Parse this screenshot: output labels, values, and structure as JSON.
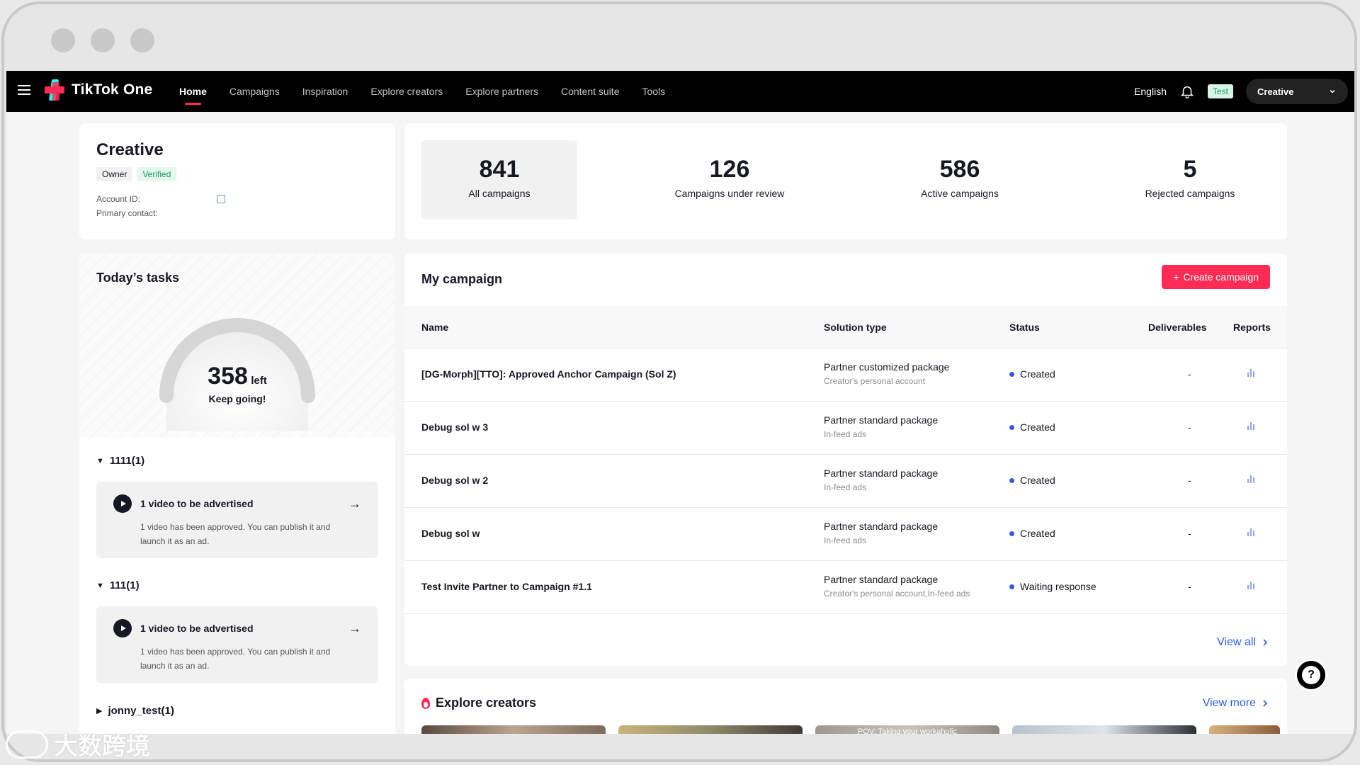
{
  "nav": {
    "brand": "TikTok One",
    "links": [
      "Home",
      "Campaigns",
      "Inspiration",
      "Explore creators",
      "Explore partners",
      "Content suite",
      "Tools"
    ],
    "active_index": 0,
    "language": "English",
    "env_badge": "Test",
    "account": "Creative"
  },
  "profile": {
    "name": "Creative",
    "owner_badge": "Owner",
    "verified_badge": "Verified",
    "account_id_label": "Account ID:",
    "primary_contact_label": "Primary contact:"
  },
  "stats": [
    {
      "value": "841",
      "label": "All campaigns"
    },
    {
      "value": "126",
      "label": "Campaigns under review"
    },
    {
      "value": "586",
      "label": "Active campaigns"
    },
    {
      "value": "5",
      "label": "Rejected campaigns"
    }
  ],
  "tasks": {
    "title": "Today’s tasks",
    "gauge_value": "358",
    "gauge_unit": "left",
    "gauge_sub": "Keep going!",
    "groups": [
      {
        "name": "1111(1)",
        "expanded": true,
        "item_title": "1 video to be advertised",
        "item_desc": "1 video has been approved. You can publish it and launch it as an ad."
      },
      {
        "name": "111(1)",
        "expanded": true,
        "item_title": "1 video to be advertised",
        "item_desc": "1 video has been approved. You can publish it and launch it as an ad."
      },
      {
        "name": "jonny_test(1)",
        "expanded": false
      }
    ]
  },
  "campaign": {
    "title": "My campaign",
    "create_label": "Create campaign",
    "columns": [
      "Name",
      "Solution type",
      "Status",
      "Deliverables",
      "Reports"
    ],
    "rows": [
      {
        "name": "[DG-Morph][TTO]: Approved Anchor Campaign (Sol Z)",
        "solution": "Partner customized package",
        "solution_sub": "Creator's personal account",
        "status": "Created",
        "deliverables": "-"
      },
      {
        "name": "Debug sol w 3",
        "solution": "Partner standard package",
        "solution_sub": "In-feed ads",
        "status": "Created",
        "deliverables": "-"
      },
      {
        "name": "Debug sol w 2",
        "solution": "Partner standard package",
        "solution_sub": "In-feed ads",
        "status": "Created",
        "deliverables": "-"
      },
      {
        "name": "Debug sol w",
        "solution": "Partner standard package",
        "solution_sub": "In-feed ads",
        "status": "Created",
        "deliverables": "-"
      },
      {
        "name": "Test Invite Partner to Campaign #1.1",
        "solution": "Partner standard package",
        "solution_sub": "Creator's personal account,In-feed ads",
        "status": "Waiting response",
        "deliverables": "-"
      }
    ],
    "view_all": "View all"
  },
  "explore": {
    "title": "Explore creators",
    "view_more": "View more",
    "thumb_caption": "POV: Taking your workaholic"
  },
  "help_icon": "question-icon",
  "watermark_text": "大数跨境",
  "colors": {
    "accent": "#fe2c55",
    "link": "#2b5ce6",
    "status_dot": "#3456e8",
    "verified": "#12a05c"
  }
}
